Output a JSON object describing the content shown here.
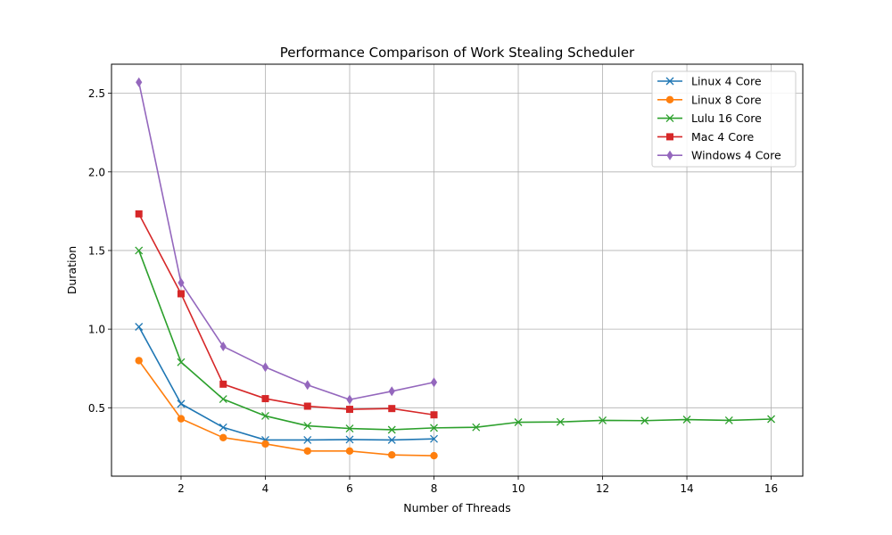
{
  "chart_data": {
    "type": "line",
    "title": "Performance Comparison of Work Stealing Scheduler",
    "xlabel": "Number of Threads",
    "ylabel": "Duration",
    "xlim": [
      0.35,
      16.75
    ],
    "ylim": [
      0.065,
      2.685
    ],
    "xticks": [
      2,
      4,
      6,
      8,
      10,
      12,
      14,
      16
    ],
    "yticks": [
      0.5,
      1.0,
      1.5,
      2.0,
      2.5
    ],
    "ytick_labels": [
      "0.5",
      "1.0",
      "1.5",
      "2.0",
      "2.5"
    ],
    "grid": true,
    "legend_position": "top-right",
    "series": [
      {
        "name": "Linux 4 Core",
        "color": "#1f77b4",
        "marker": "x",
        "x": [
          1,
          2,
          3,
          4,
          5,
          6,
          7,
          8
        ],
        "y": [
          1.015,
          0.525,
          0.375,
          0.295,
          0.295,
          0.298,
          0.295,
          0.302
        ]
      },
      {
        "name": "Linux 8 Core",
        "color": "#ff7f0e",
        "marker": "circle",
        "x": [
          1,
          2,
          3,
          4,
          5,
          6,
          7,
          8
        ],
        "y": [
          0.8,
          0.43,
          0.31,
          0.27,
          0.225,
          0.225,
          0.2,
          0.195
        ]
      },
      {
        "name": "Lulu 16 Core",
        "color": "#2ca02c",
        "marker": "x",
        "x": [
          1,
          2,
          3,
          4,
          5,
          6,
          7,
          8,
          9,
          10,
          11,
          12,
          13,
          14,
          15,
          16
        ],
        "y": [
          1.5,
          0.79,
          0.555,
          0.448,
          0.385,
          0.368,
          0.36,
          0.372,
          0.376,
          0.408,
          0.41,
          0.42,
          0.418,
          0.425,
          0.42,
          0.428
        ]
      },
      {
        "name": "Mac 4 Core",
        "color": "#d62728",
        "marker": "square",
        "x": [
          1,
          2,
          3,
          4,
          5,
          6,
          7,
          8
        ],
        "y": [
          1.733,
          1.225,
          0.65,
          0.558,
          0.51,
          0.49,
          0.495,
          0.455
        ]
      },
      {
        "name": "Windows 4 Core",
        "color": "#9467bd",
        "marker": "diamond",
        "x": [
          1,
          2,
          3,
          4,
          5,
          6,
          7,
          8
        ],
        "y": [
          2.57,
          1.295,
          0.89,
          0.758,
          0.645,
          0.552,
          0.605,
          0.662
        ]
      }
    ]
  }
}
